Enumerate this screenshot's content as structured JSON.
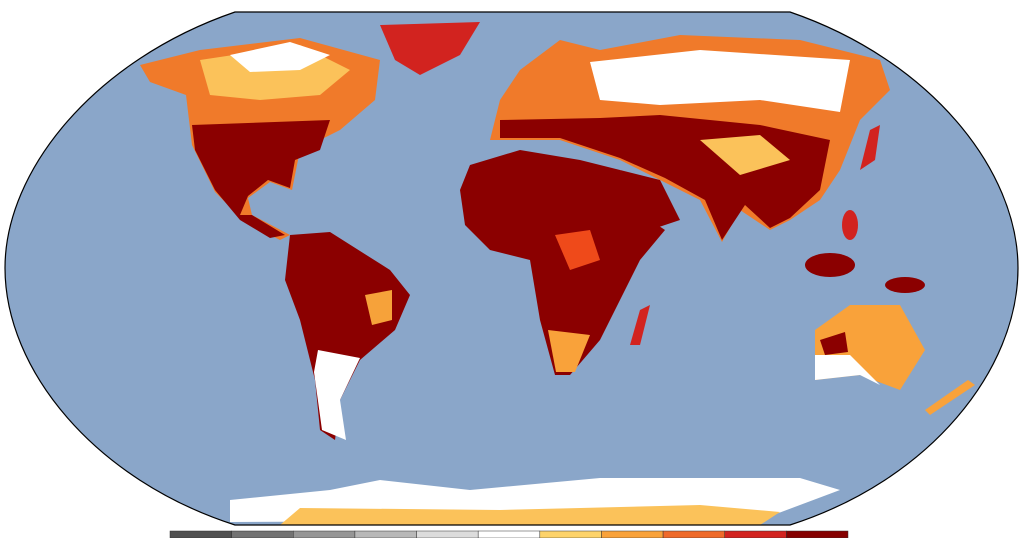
{
  "colorbar": {
    "colors": [
      "#505050",
      "#737373",
      "#969696",
      "#b8b8b8",
      "#dcdcdc",
      "#ffffff",
      "#fdd36a",
      "#f9a23a",
      "#ef6a2a",
      "#d2231f",
      "#850000"
    ]
  }
}
